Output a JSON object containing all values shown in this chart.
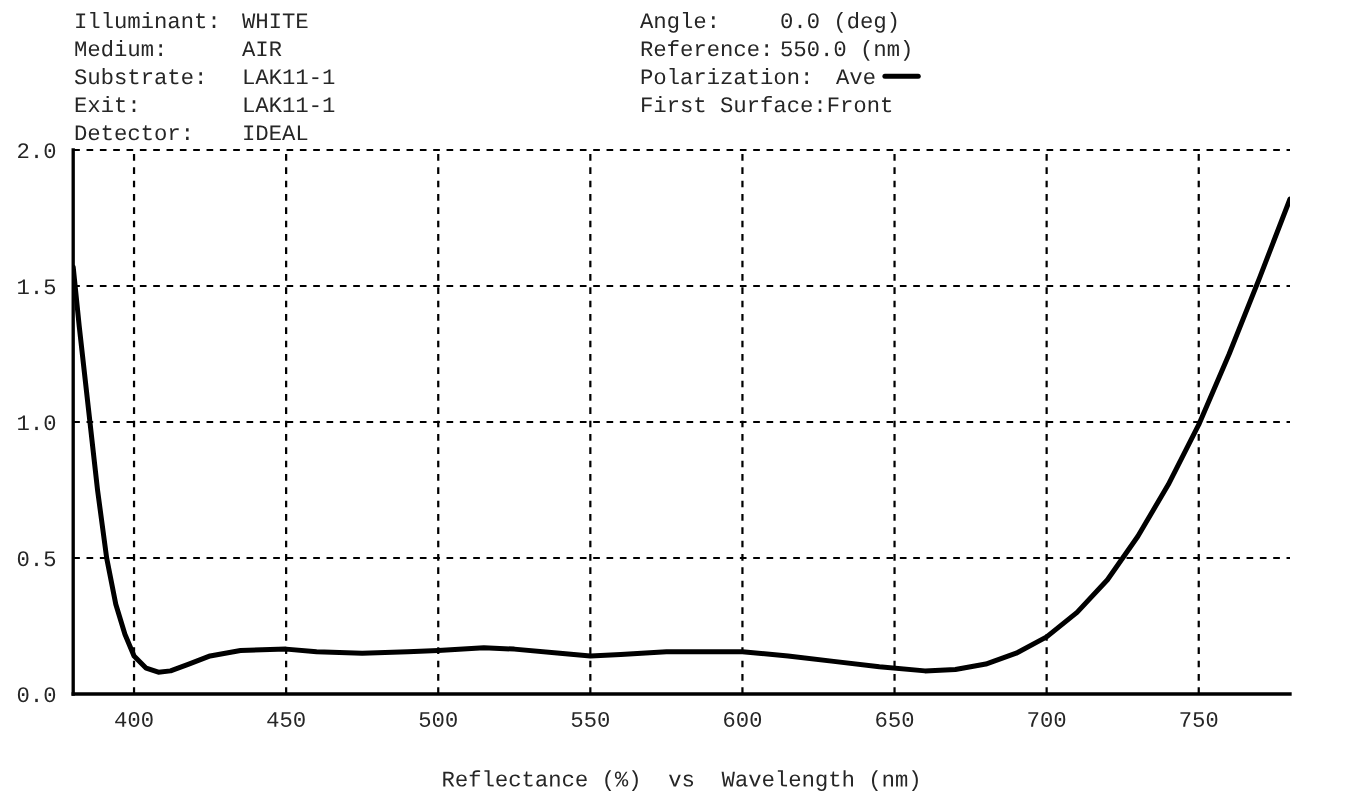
{
  "chart_data": {
    "type": "line",
    "xlabel": "Reflectance (%)  vs  Wavelength (nm)",
    "annotations": [
      "Illuminant:",
      "WHITE",
      "Medium:",
      "AIR",
      "Substrate:",
      "LAK11-1",
      "Exit:",
      "LAK11-1",
      "Detector:",
      "IDEAL",
      "Angle:",
      "0.0 (deg)",
      "Reference:",
      "550.0 (nm)",
      "Polarization:",
      "First Surface:Front"
    ],
    "x": [
      380,
      382,
      385,
      388,
      391,
      394,
      397,
      400,
      404,
      408,
      412,
      418,
      425,
      435,
      450,
      460,
      475,
      490,
      500,
      515,
      525,
      540,
      550,
      560,
      575,
      590,
      600,
      615,
      630,
      645,
      660,
      670,
      680,
      690,
      700,
      710,
      720,
      730,
      740,
      750,
      760,
      770,
      780
    ],
    "series": [
      {
        "name": "Ave",
        "color": "#000000",
        "values": [
          1.57,
          1.35,
          1.05,
          0.75,
          0.5,
          0.33,
          0.22,
          0.14,
          0.095,
          0.08,
          0.085,
          0.11,
          0.14,
          0.16,
          0.165,
          0.155,
          0.15,
          0.155,
          0.16,
          0.17,
          0.165,
          0.15,
          0.14,
          0.145,
          0.155,
          0.155,
          0.155,
          0.14,
          0.12,
          0.1,
          0.085,
          0.09,
          0.11,
          0.15,
          0.21,
          0.3,
          0.42,
          0.58,
          0.77,
          0.99,
          1.25,
          1.53,
          1.82
        ]
      }
    ],
    "xlim": [
      380,
      780
    ],
    "ylim": [
      0,
      2
    ],
    "xticks": [
      400,
      450,
      500,
      550,
      600,
      650,
      700,
      750
    ],
    "yticks": [
      {
        "value": 0,
        "label": "0.0"
      },
      {
        "value": 0.5,
        "label": "0.5"
      },
      {
        "value": 1,
        "label": "1.0"
      },
      {
        "value": 1.5,
        "label": "1.5"
      },
      {
        "value": 2,
        "label": "2.0"
      }
    ],
    "grid": true,
    "legend": "top",
    "line_style": "solid",
    "marker": "none"
  }
}
